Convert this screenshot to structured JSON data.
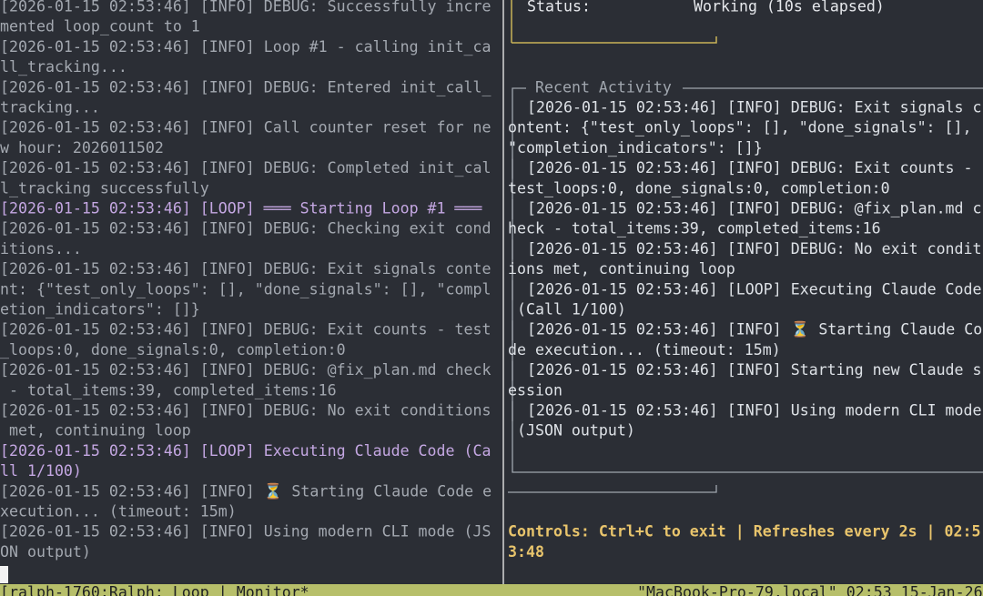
{
  "left_pane": {
    "entries": [
      {
        "color": "#a3a8b0",
        "lines": [
          "[2026-01-15 02:53:46] [INFO] DEBUG: Successfully incre",
          "mented loop_count to 1"
        ]
      },
      {
        "color": "#a3a8b0",
        "lines": [
          "[2026-01-15 02:53:46] [INFO] Loop #1 - calling init_ca",
          "ll_tracking..."
        ]
      },
      {
        "color": "#a3a8b0",
        "lines": [
          "[2026-01-15 02:53:46] [INFO] DEBUG: Entered init_call_",
          "tracking..."
        ]
      },
      {
        "color": "#a3a8b0",
        "lines": [
          "[2026-01-15 02:53:46] [INFO] Call counter reset for ne",
          "w hour: 2026011502"
        ]
      },
      {
        "color": "#a3a8b0",
        "lines": [
          "[2026-01-15 02:53:46] [INFO] DEBUG: Completed init_cal",
          "l_tracking successfully"
        ]
      },
      {
        "color": "#c4a7e2",
        "lines": [
          "[2026-01-15 02:53:46] [LOOP] ═══ Starting Loop #1 ═══"
        ]
      },
      {
        "color": "#a3a8b0",
        "lines": [
          "[2026-01-15 02:53:46] [INFO] DEBUG: Checking exit cond",
          "itions..."
        ]
      },
      {
        "color": "#a3a8b0",
        "lines": [
          "[2026-01-15 02:53:46] [INFO] DEBUG: Exit signals conte",
          "nt: {\"test_only_loops\": [], \"done_signals\": [], \"compl",
          "etion_indicators\": []}"
        ]
      },
      {
        "color": "#a3a8b0",
        "lines": [
          "[2026-01-15 02:53:46] [INFO] DEBUG: Exit counts - test",
          "_loops:0, done_signals:0, completion:0"
        ]
      },
      {
        "color": "#a3a8b0",
        "lines": [
          "[2026-01-15 02:53:46] [INFO] DEBUG: @fix_plan.md check",
          " - total_items:39, completed_items:16"
        ]
      },
      {
        "color": "#a3a8b0",
        "lines": [
          "[2026-01-15 02:53:46] [INFO] DEBUG: No exit conditions",
          " met, continuing loop"
        ]
      },
      {
        "color": "#c4a7e2",
        "lines": [
          "[2026-01-15 02:53:46] [LOOP] Executing Claude Code (Ca",
          "ll 1/100)"
        ]
      },
      {
        "color": "#a3a8b0",
        "lines": [
          "[2026-01-15 02:53:46] [INFO] ⏳ Starting Claude Code e",
          "xecution... (timeout: 15m)"
        ]
      },
      {
        "color": "#a3a8b0",
        "lines": [
          "[2026-01-15 02:53:46] [INFO] Using modern CLI mode (JS",
          "ON output)"
        ]
      }
    ]
  },
  "status_box": {
    "label": "Status:",
    "spinner": "⠁",
    "value": "Working (10s elapsed)"
  },
  "activity": {
    "title": "Recent Activity",
    "entries": [
      [
        "[2026-01-15 02:53:46] [INFO] DEBUG: Exit signals c",
        "ontent: {\"test_only_loops\": [], \"done_signals\": [],",
        "\"completion_indicators\": []}"
      ],
      [
        "[2026-01-15 02:53:46] [INFO] DEBUG: Exit counts -",
        "test_loops:0, done_signals:0, completion:0"
      ],
      [
        "[2026-01-15 02:53:46] [INFO] DEBUG: @fix_plan.md c",
        "heck - total_items:39, completed_items:16"
      ],
      [
        "[2026-01-15 02:53:46] [INFO] DEBUG: No exit condit",
        "ions met, continuing loop"
      ],
      [
        "[2026-01-15 02:53:46] [LOOP] Executing Claude Code",
        " (Call 1/100)"
      ],
      [
        "[2026-01-15 02:53:46] [INFO] ⏳ Starting Claude Co",
        "de execution... (timeout: 15m)"
      ],
      [
        "[2026-01-15 02:53:46] [INFO] Starting new Claude s",
        "ession"
      ],
      [
        "[2026-01-15 02:53:46] [INFO] Using modern CLI mode",
        " (JSON output)"
      ]
    ]
  },
  "controls": [
    "Controls: Ctrl+C to exit | Refreshes every 2s | 02:5",
    "3:48"
  ],
  "status_bar": {
    "left": "[ralph-1760:Ralph: Loop | Monitor*",
    "right": "\"MacBook-Pro-79.local\" 02:53 15-Jan-26"
  }
}
